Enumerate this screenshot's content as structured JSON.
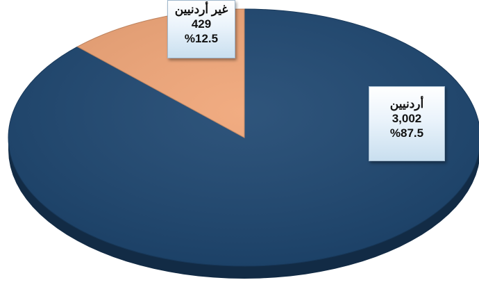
{
  "chart_data": {
    "type": "pie",
    "title": "",
    "slices": [
      {
        "label": "أردنيين",
        "value": 3002,
        "value_text": "3,002",
        "percent_text": "%87.5",
        "color": "#1d4670"
      },
      {
        "label": "غير أردنيين",
        "value": 429,
        "value_text": "429",
        "percent_text": "%12.5",
        "color": "#f0a577"
      }
    ],
    "legend": "none",
    "style": "3d"
  }
}
